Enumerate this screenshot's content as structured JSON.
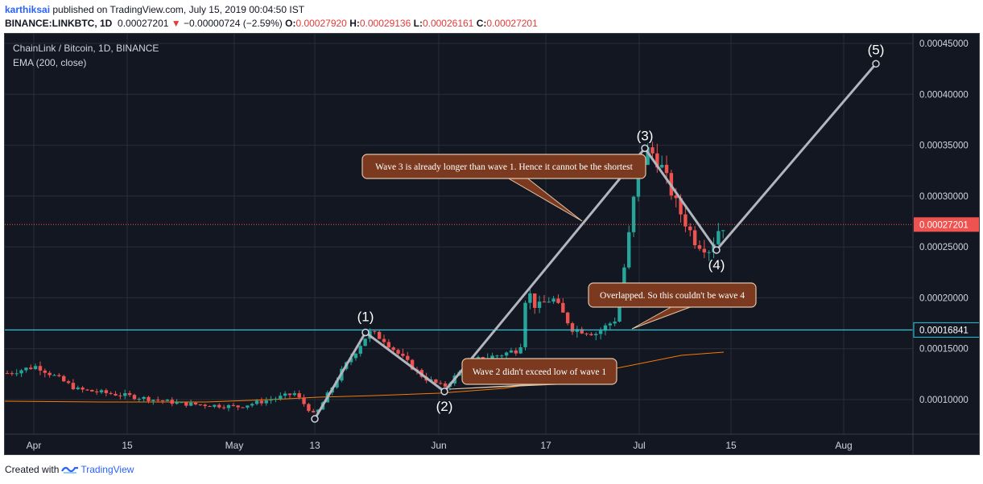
{
  "header": {
    "author": "karthiksai",
    "published_text": " published on TradingView.com, July 15, 2019 00:04:50 IST",
    "symbol_line": "BINANCE:LINKBTC, 1D",
    "last_price": "0.00027201",
    "change_arrow": "▼",
    "change": "−0.00000724 (−2.59%)",
    "o_label": "O:",
    "o_value": "0.00027920",
    "h_label": "H:",
    "h_value": "0.00029136",
    "l_label": "L:",
    "l_value": "0.00026161",
    "c_label": "C:",
    "c_value": "0.00027201"
  },
  "legend": {
    "symbol": "ChainLink / Bitcoin, 1D, BINANCE",
    "indicator": "EMA (200, close)"
  },
  "footer": {
    "created_with": "Created with",
    "brand": "TradingView"
  },
  "colors": {
    "background": "#131722",
    "up": "#26a69a",
    "down": "#ef5350",
    "ema": "#f57c00",
    "wave": "#b2b5be",
    "support": "#26c6da",
    "annotation_fill": "#7b3a1f"
  },
  "y_axis": {
    "ticks": [
      "0.00045000",
      "0.00040000",
      "0.00035000",
      "0.00030000",
      "0.00025000",
      "0.00020000",
      "0.00015000",
      "0.00010000"
    ],
    "price_label": "0.00027201",
    "support_label": "0.00016841"
  },
  "x_axis": {
    "ticks": [
      "Apr",
      "15",
      "May",
      "13",
      "Jun",
      "17",
      "Jul",
      "15",
      "Aug"
    ]
  },
  "waves": {
    "labels": [
      "(1)",
      "(2)",
      "(3)",
      "(4)",
      "(5)"
    ]
  },
  "annotations": {
    "wave3": "Wave 3 is already longer than wave 1. Hence it cannot be the shortest",
    "wave4": "Overlapped. So this couldn't be wave 4",
    "wave2": "Wave 2 didn't exceed low of wave 1"
  },
  "chart_data": {
    "type": "candlestick",
    "symbol": "BINANCE:LINKBTC",
    "interval": "1D",
    "last_close": 0.00027201,
    "support_level": 0.00016841,
    "ylim": [
      7e-05,
      0.00047
    ],
    "wave_points": [
      {
        "label": "start",
        "date": "2019-05-13",
        "price": 8.1e-05
      },
      {
        "label": "(1)",
        "date": "2019-05-20",
        "price": 0.000166
      },
      {
        "label": "(2)",
        "date": "2019-06-01",
        "price": 0.000108
      },
      {
        "label": "(3)",
        "date": "2019-06-30",
        "price": 0.000347
      },
      {
        "label": "(4)",
        "date": "2019-07-08",
        "price": 0.000247
      },
      {
        "label": "(5)",
        "date": "2019-08-09",
        "price": 0.00043
      }
    ]
  }
}
